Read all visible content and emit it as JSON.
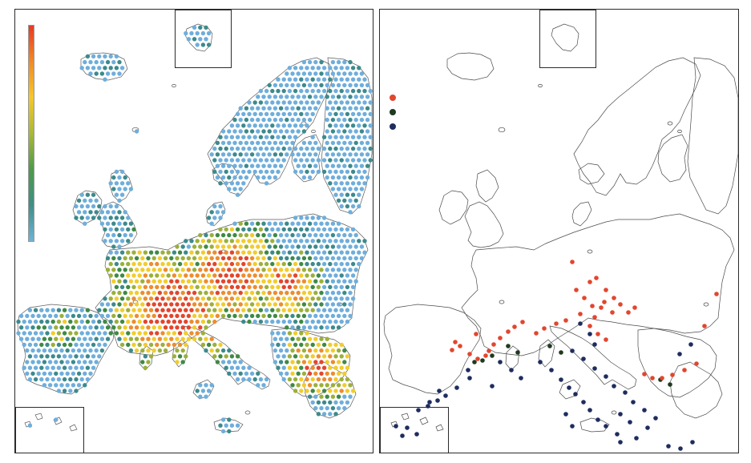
{
  "figure": {
    "left_panel": {
      "colorbar": {
        "stops": [
          "#e83a22",
          "#f08a28",
          "#f5c72a",
          "#a9b83a",
          "#4f9a4a",
          "#3f8f86",
          "#6fb2d8"
        ],
        "ticks": []
      },
      "colors": {
        "red": "#e2462e",
        "orange": "#ec8d30",
        "yellow": "#f2cc2e",
        "olive": "#9bb03c",
        "green": "#3f8a45",
        "teal": "#3d8a8c",
        "blue": "#6faedb",
        "coast": "#5b5b5b"
      }
    },
    "right_panel": {
      "legend": [
        {
          "symbol": "dot",
          "color": "#e2462e",
          "label": ""
        },
        {
          "symbol": "dot",
          "color": "#1f3a1f",
          "label": ""
        },
        {
          "symbol": "dot",
          "color": "#1e2d5e",
          "label": ""
        }
      ],
      "colors": {
        "red": "#e2462e",
        "dark_green": "#1f3a1f",
        "navy": "#1e2d5e",
        "coast": "#4a4a4a"
      }
    }
  }
}
